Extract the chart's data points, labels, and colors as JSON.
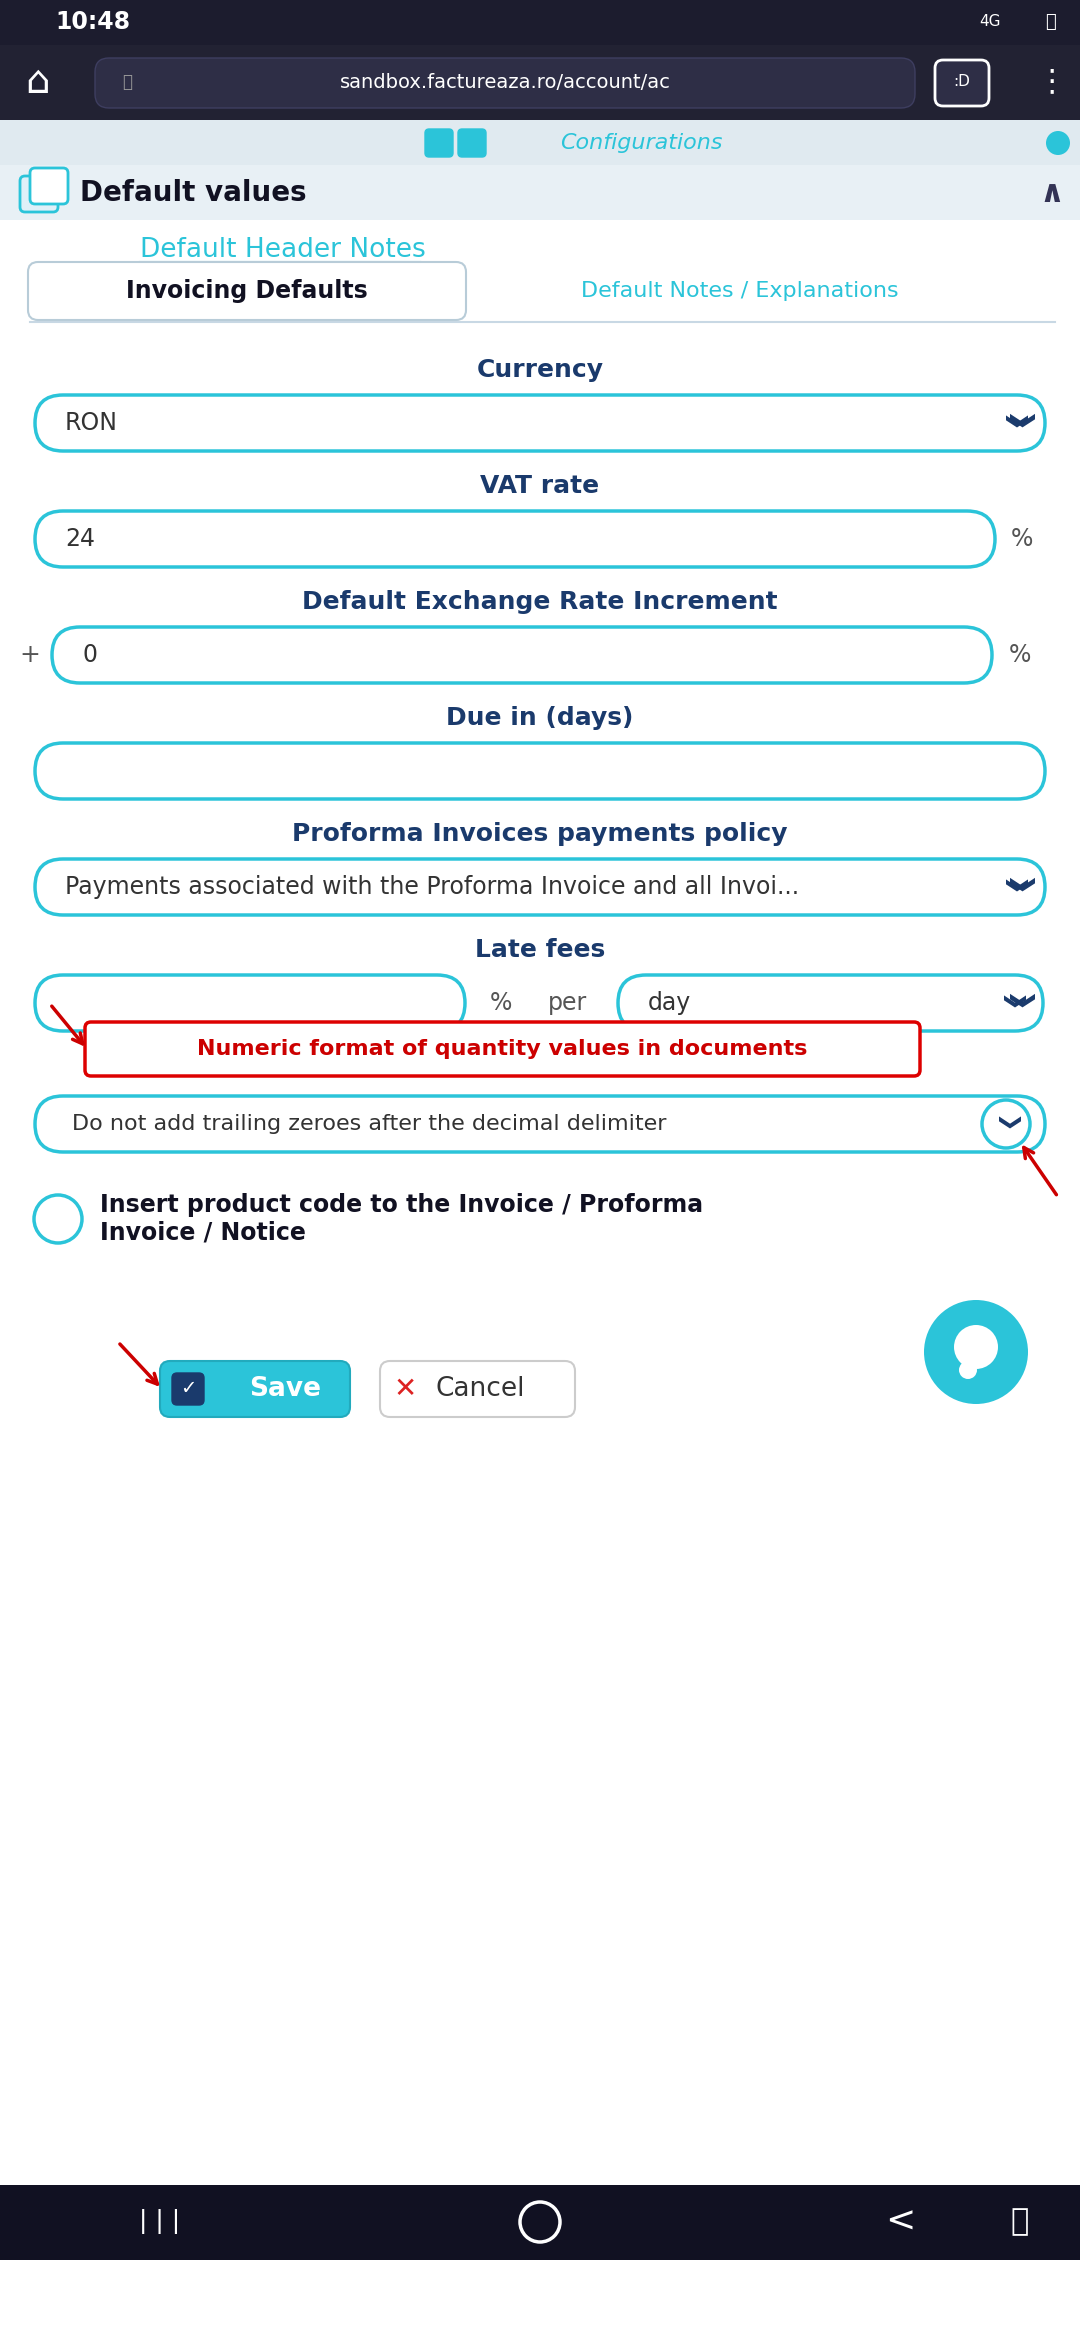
{
  "bg_color": "#f0f4f8",
  "white": "#ffffff",
  "teal": "#2bc4d9",
  "dark_blue": "#1a3a6c",
  "status_bar_bg": "#1c1c2e",
  "nav_bar_bg": "#222233",
  "bottom_nav_bg": "#111122",
  "time_text": "10:48",
  "url_text": "sandbox.factureaza.ro/account/ac",
  "section_title": "Default values",
  "tab1": "Invoicing Defaults",
  "tab2": "Default Notes / Explanations",
  "header_notes": "Default Header Notes",
  "highlight_label": "Numeric format of quantity values in documents",
  "highlight_value": "Do not add trailing zeroes after the decimal delimiter",
  "checkbox_label": "Insert product code to the Invoice / Proforma\nInvoice / Notice",
  "save_btn": "Save",
  "cancel_btn": "Cancel",
  "arrow_color": "#cc0000",
  "label_color": "#1a3a6c",
  "field_border": "#2bc4d9",
  "field_text": "#333333",
  "percent_color": "#555555"
}
